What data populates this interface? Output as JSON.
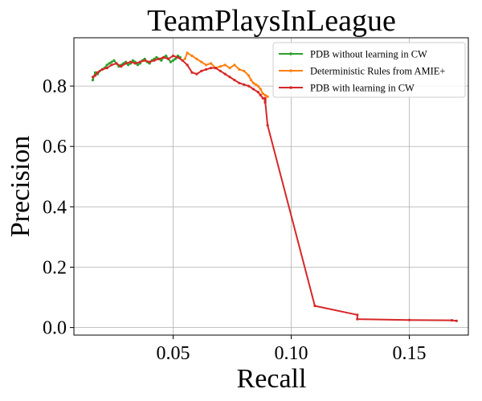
{
  "chart_data": {
    "type": "line",
    "title": "TeamPlaysInLeague",
    "xlabel": "Recall",
    "ylabel": "Precision",
    "xlim": [
      0.008,
      0.175
    ],
    "ylim": [
      -0.025,
      0.96
    ],
    "xticks": [
      0.05,
      0.1,
      0.15
    ],
    "xtick_labels": [
      "0.05",
      "0.10",
      "0.15"
    ],
    "yticks": [
      0.0,
      0.2,
      0.4,
      0.6,
      0.8
    ],
    "ytick_labels": [
      "0.0",
      "0.2",
      "0.4",
      "0.6",
      "0.8"
    ],
    "grid": true,
    "legend_position": "top-right",
    "series": [
      {
        "name": "PDB without learning in CW",
        "color": "#2ca02c",
        "x": [
          0.016,
          0.017,
          0.018,
          0.019,
          0.02,
          0.021,
          0.022,
          0.023,
          0.024,
          0.025,
          0.026,
          0.027,
          0.028,
          0.029,
          0.03,
          0.031,
          0.032,
          0.033,
          0.034,
          0.035,
          0.036,
          0.037,
          0.038,
          0.039,
          0.04,
          0.041,
          0.042,
          0.043,
          0.044,
          0.045,
          0.046,
          0.047,
          0.048,
          0.049,
          0.05,
          0.051,
          0.052,
          0.053
        ],
        "y": [
          0.82,
          0.845,
          0.84,
          0.85,
          0.855,
          0.86,
          0.87,
          0.875,
          0.88,
          0.885,
          0.875,
          0.865,
          0.87,
          0.875,
          0.88,
          0.87,
          0.875,
          0.885,
          0.88,
          0.87,
          0.875,
          0.885,
          0.89,
          0.88,
          0.875,
          0.885,
          0.89,
          0.895,
          0.89,
          0.885,
          0.895,
          0.9,
          0.89,
          0.88,
          0.885,
          0.89,
          0.9,
          0.895
        ]
      },
      {
        "name": "Deterministic Rules from AMIE+",
        "color": "#ff7f0e",
        "x": [
          0.055,
          0.056,
          0.058,
          0.06,
          0.062,
          0.064,
          0.066,
          0.068,
          0.07,
          0.072,
          0.074,
          0.076,
          0.078,
          0.08,
          0.082,
          0.083,
          0.084,
          0.085,
          0.086,
          0.087,
          0.088,
          0.089,
          0.09
        ],
        "y": [
          0.89,
          0.91,
          0.9,
          0.89,
          0.88,
          0.87,
          0.875,
          0.86,
          0.865,
          0.87,
          0.86,
          0.87,
          0.855,
          0.85,
          0.835,
          0.82,
          0.81,
          0.805,
          0.8,
          0.79,
          0.775,
          0.77,
          0.765
        ]
      },
      {
        "name": "PDB with learning in CW",
        "color": "#d62728",
        "x": [
          0.016,
          0.017,
          0.018,
          0.02,
          0.022,
          0.024,
          0.026,
          0.028,
          0.03,
          0.032,
          0.034,
          0.036,
          0.038,
          0.04,
          0.042,
          0.044,
          0.046,
          0.048,
          0.05,
          0.052,
          0.054,
          0.056,
          0.058,
          0.06,
          0.062,
          0.064,
          0.066,
          0.068,
          0.07,
          0.072,
          0.074,
          0.076,
          0.078,
          0.08,
          0.082,
          0.084,
          0.086,
          0.087,
          0.088,
          0.089,
          0.089,
          0.089,
          0.089,
          0.09,
          0.11,
          0.128,
          0.128,
          0.15,
          0.168,
          0.17
        ],
        "y": [
          0.83,
          0.835,
          0.845,
          0.855,
          0.86,
          0.87,
          0.875,
          0.865,
          0.875,
          0.88,
          0.875,
          0.88,
          0.885,
          0.88,
          0.885,
          0.89,
          0.895,
          0.89,
          0.9,
          0.895,
          0.885,
          0.87,
          0.845,
          0.84,
          0.85,
          0.855,
          0.86,
          0.86,
          0.85,
          0.84,
          0.83,
          0.82,
          0.81,
          0.805,
          0.8,
          0.79,
          0.78,
          0.77,
          0.76,
          0.755,
          0.745,
          0.76,
          0.75,
          0.67,
          0.072,
          0.042,
          0.028,
          0.025,
          0.024,
          0.022
        ]
      }
    ]
  }
}
